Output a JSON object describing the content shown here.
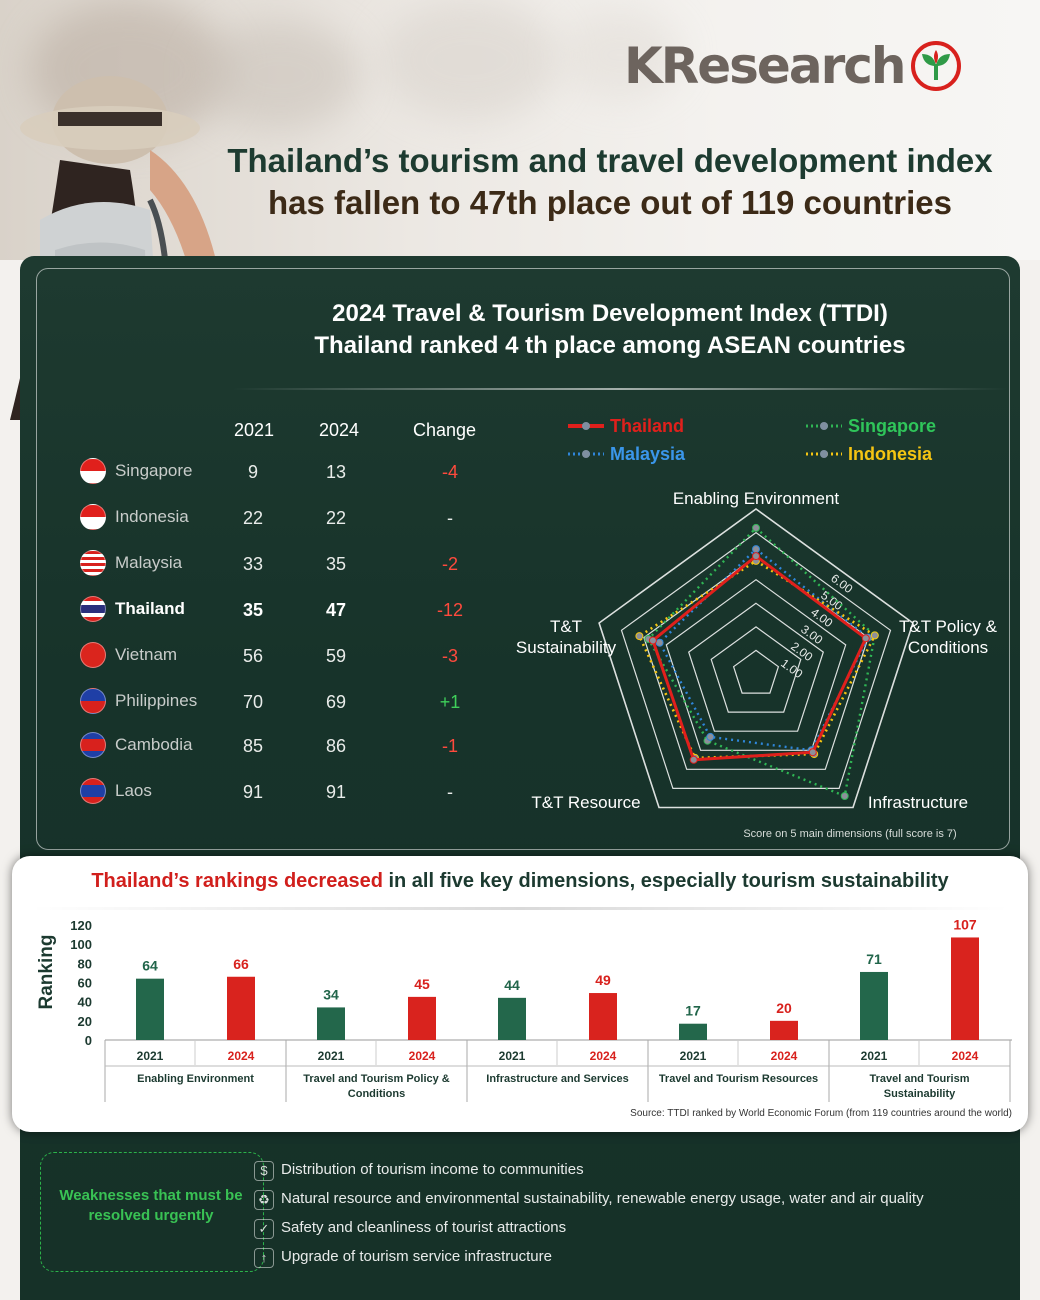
{
  "brand": {
    "name": "KResearch"
  },
  "headline": {
    "line1": "Thailand’s tourism and travel development index",
    "line2": "has fallen to 47th place out of 119 countries"
  },
  "ranking_section": {
    "title_line1": "2024 Travel & Tourism Development Index (TTDI)",
    "title_line2": "Thailand ranked 4 th place among ASEAN countries",
    "headers": {
      "y2021": "2021",
      "y2024": "2024",
      "change": "Change"
    }
  },
  "radar_section": {
    "legend": [
      {
        "name": "Thailand",
        "color": "#e0201c"
      },
      {
        "name": "Malaysia",
        "color": "#2f86d9"
      },
      {
        "name": "Singapore",
        "color": "#2fb554"
      },
      {
        "name": "Indonesia",
        "color": "#f5c512"
      }
    ],
    "axes": [
      "Enabling Environment",
      "T&T Policy & Conditions",
      "Infrastructure",
      "T&T Resource",
      "T&T Sustainability"
    ],
    "tick_labels": [
      "1.00",
      "2.00",
      "3.00",
      "4.00",
      "5.00",
      "6.00"
    ],
    "note": "Score on 5 main dimensions (full score is 7)"
  },
  "bar_section": {
    "title_red": "Thailand’s rankings decreased",
    "title_rest": " in all five key dimensions, especially tourism sustainability",
    "ylabel": "Ranking",
    "source": "Source: TTDI ranked by World Economic Forum (from 119 countries around the world)"
  },
  "weaknesses": {
    "label": "Weaknesses that must be resolved urgently",
    "items": [
      {
        "text": "Distribution of tourism income to communities",
        "icon": "coins-icon"
      },
      {
        "text": "Natural resource and environmental sustainability, renewable energy usage, water and air quality",
        "icon": "recycle-icon"
      },
      {
        "text": "Safety and cleanliness of tourist attractions",
        "icon": "shield-icon"
      },
      {
        "text": "Upgrade of tourism service infrastructure",
        "icon": "upgrade-arrow-icon"
      }
    ]
  },
  "chart_data": [
    {
      "type": "table",
      "columns": [
        "Country",
        "2021",
        "2024",
        "Change"
      ],
      "rows": [
        {
          "country": "Singapore",
          "y2021": "9",
          "y2024": "13",
          "change": "-4"
        },
        {
          "country": "Indonesia",
          "y2021": "22",
          "y2024": "22",
          "change": "-"
        },
        {
          "country": "Malaysia",
          "y2021": "33",
          "y2024": "35",
          "change": "-2"
        },
        {
          "country": "Thailand",
          "y2021": "35",
          "y2024": "47",
          "change": "-12"
        },
        {
          "country": "Vietnam",
          "y2021": "56",
          "y2024": "59",
          "change": "-3"
        },
        {
          "country": "Philippines",
          "y2021": "70",
          "y2024": "69",
          "change": "+1"
        },
        {
          "country": "Cambodia",
          "y2021": "85",
          "y2024": "86",
          "change": "-1"
        },
        {
          "country": "Laos",
          "y2021": "91",
          "y2024": "91",
          "change": "-"
        }
      ]
    },
    {
      "type": "radar",
      "axes": [
        "Enabling Environment",
        "T&T Policy & Conditions",
        "Infrastructure",
        "T&T Resource",
        "T&T Sustainability"
      ],
      "range": [
        0,
        7
      ],
      "series": [
        {
          "name": "Thailand",
          "values": [
            5.0,
            4.9,
            4.1,
            4.5,
            4.6
          ]
        },
        {
          "name": "Malaysia",
          "values": [
            5.3,
            5.0,
            4.0,
            3.3,
            4.3
          ]
        },
        {
          "name": "Singapore",
          "values": [
            6.2,
            5.3,
            6.4,
            3.5,
            4.8
          ]
        },
        {
          "name": "Indonesia",
          "values": [
            4.8,
            5.3,
            4.2,
            4.4,
            5.2
          ]
        }
      ]
    },
    {
      "type": "bar",
      "title": "",
      "ylabel": "Ranking",
      "ylim": [
        0,
        120
      ],
      "yticks": [
        0,
        20,
        40,
        60,
        80,
        100,
        120
      ],
      "categories": [
        "Enabling Environment",
        "Travel and Tourism Policy & Conditions",
        "Infrastructure and Services",
        "Travel and Tourism Resources",
        "Travel and Tourism Sustainability"
      ],
      "series": [
        {
          "name": "2021",
          "color": "#21654a",
          "values": [
            64,
            34,
            44,
            17,
            71
          ]
        },
        {
          "name": "2024",
          "color": "#d8211d",
          "values": [
            66,
            45,
            49,
            20,
            107
          ]
        }
      ]
    }
  ]
}
